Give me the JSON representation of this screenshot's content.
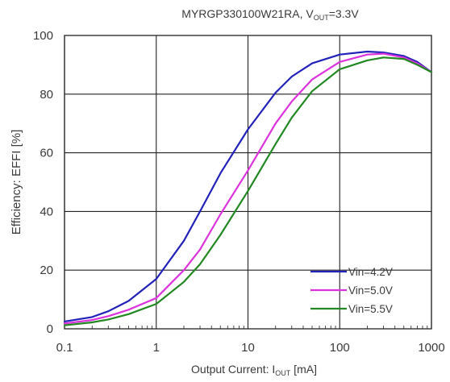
{
  "chart_data": {
    "type": "line",
    "title": {
      "main": "MYRGP330100W21RA, V",
      "sub": "OUT",
      "tail": "=3.3V"
    },
    "xlabel": {
      "main": "Output  Current: I",
      "sub": "OUT",
      "tail": " [mA]"
    },
    "ylabel": "Efficiency: EFFI [%]",
    "x_scale": "log",
    "xlim": [
      0.1,
      1000
    ],
    "ylim": [
      0,
      100
    ],
    "x_ticks": [
      {
        "value": 0.1,
        "label": "0.1"
      },
      {
        "value": 1,
        "label": "1"
      },
      {
        "value": 10,
        "label": "10"
      },
      {
        "value": 100,
        "label": "100"
      },
      {
        "value": 1000,
        "label": "1000"
      }
    ],
    "y_ticks": [
      {
        "value": 0,
        "label": "0"
      },
      {
        "value": 20,
        "label": "20"
      },
      {
        "value": 40,
        "label": "40"
      },
      {
        "value": 60,
        "label": "60"
      },
      {
        "value": 80,
        "label": "80"
      },
      {
        "value": 100,
        "label": "100"
      }
    ],
    "grid": true,
    "legend_position": "bottom-right",
    "series": [
      {
        "name": "Vin=4.2V",
        "color": "#2222bb",
        "points": [
          [
            0.1,
            2.5
          ],
          [
            0.2,
            4
          ],
          [
            0.3,
            6
          ],
          [
            0.5,
            9.5
          ],
          [
            1,
            17
          ],
          [
            2,
            30
          ],
          [
            3,
            40
          ],
          [
            5,
            53
          ],
          [
            10,
            68
          ],
          [
            20,
            80.5
          ],
          [
            30,
            86
          ],
          [
            50,
            90.5
          ],
          [
            100,
            93.5
          ],
          [
            200,
            94.5
          ],
          [
            300,
            94.2
          ],
          [
            500,
            93
          ],
          [
            700,
            91
          ],
          [
            1000,
            87.5
          ]
        ]
      },
      {
        "name": "Vin=5.0V",
        "color": "#dd33dd",
        "points": [
          [
            0.1,
            1.8
          ],
          [
            0.2,
            3
          ],
          [
            0.3,
            4.3
          ],
          [
            0.5,
            6.5
          ],
          [
            1,
            10.5
          ],
          [
            2,
            20
          ],
          [
            3,
            27
          ],
          [
            5,
            39
          ],
          [
            10,
            54
          ],
          [
            20,
            70
          ],
          [
            30,
            77.5
          ],
          [
            50,
            85
          ],
          [
            100,
            91
          ],
          [
            200,
            93.5
          ],
          [
            300,
            93.8
          ],
          [
            500,
            92.5
          ],
          [
            700,
            90.5
          ],
          [
            1000,
            87.5
          ]
        ]
      },
      {
        "name": "Vin=5.5V",
        "color": "#228822",
        "points": [
          [
            0.1,
            1.2
          ],
          [
            0.2,
            2.2
          ],
          [
            0.3,
            3.2
          ],
          [
            0.5,
            5
          ],
          [
            1,
            8.5
          ],
          [
            2,
            16
          ],
          [
            3,
            22
          ],
          [
            5,
            32
          ],
          [
            10,
            47
          ],
          [
            20,
            63
          ],
          [
            30,
            72
          ],
          [
            50,
            81
          ],
          [
            100,
            88.5
          ],
          [
            200,
            91.5
          ],
          [
            300,
            92.5
          ],
          [
            500,
            92
          ],
          [
            700,
            90
          ],
          [
            1000,
            87.5
          ]
        ]
      }
    ]
  }
}
